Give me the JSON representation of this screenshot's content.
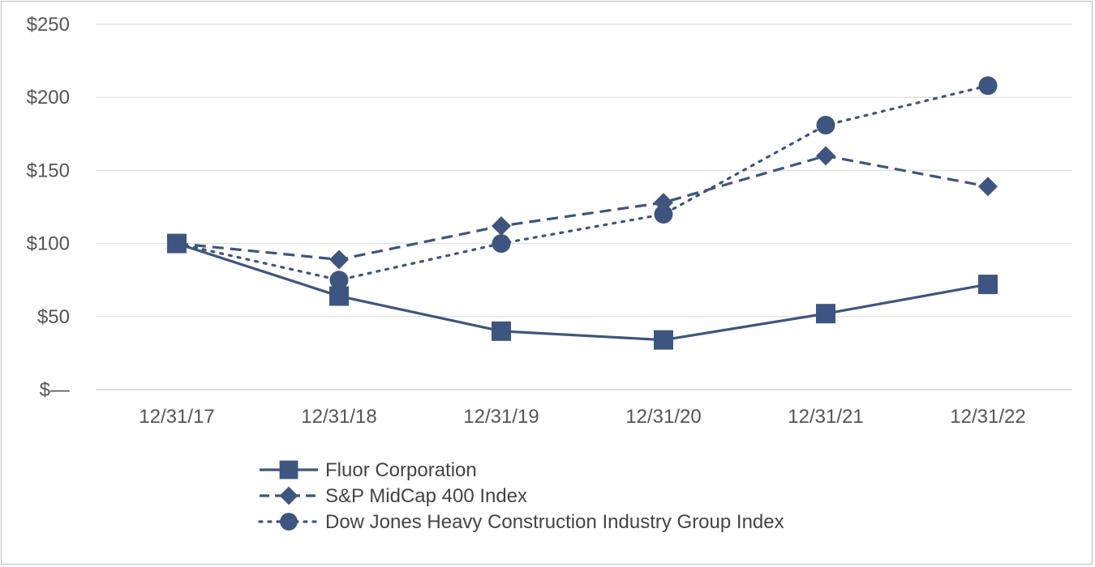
{
  "chart_data": {
    "type": "line",
    "title": "",
    "xlabel": "",
    "ylabel": "",
    "categories": [
      "12/31/17",
      "12/31/18",
      "12/31/19",
      "12/31/20",
      "12/31/21",
      "12/31/22"
    ],
    "ylim": [
      0,
      250
    ],
    "yticks": [
      0,
      50,
      100,
      150,
      200,
      250
    ],
    "ytick_labels": [
      "$—",
      "$50",
      "$100",
      "$150",
      "$200",
      "$250"
    ],
    "grid": true,
    "legend_position": "bottom",
    "series": [
      {
        "name": "Fluor Corporation",
        "marker": "square",
        "line_style": "solid",
        "color": "#3d5580",
        "values": [
          100,
          64,
          40,
          34,
          52,
          72
        ]
      },
      {
        "name": "S&P MidCap 400 Index",
        "marker": "diamond",
        "line_style": "dashed",
        "color": "#3d5580",
        "values": [
          100,
          89,
          112,
          128,
          160,
          139
        ]
      },
      {
        "name": "Dow Jones Heavy Construction Industry Group Index",
        "marker": "circle",
        "line_style": "dotted",
        "color": "#3d5580",
        "values": [
          100,
          75,
          100,
          120,
          181,
          208
        ]
      }
    ]
  }
}
